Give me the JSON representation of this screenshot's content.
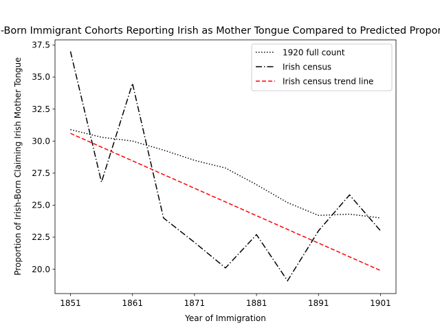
{
  "chart_data": {
    "type": "line",
    "title": "Irish-Born Immigrant Cohorts Reporting Irish as Mother Tongue Compared to Predicted Proportion",
    "xlabel": "Year of Immigration",
    "ylabel": "Proportion of Irish-Born Claiming Irish Mother Tongue",
    "xlim": [
      1848.5,
      1903.5
    ],
    "ylim": [
      18.1,
      37.9
    ],
    "xticks": [
      1851,
      1861,
      1871,
      1881,
      1891,
      1901
    ],
    "yticks": [
      20.0,
      22.5,
      25.0,
      27.5,
      30.0,
      32.5,
      35.0,
      37.5
    ],
    "ytick_labels": [
      "20.0",
      "22.5",
      "25.0",
      "27.5",
      "30.0",
      "32.5",
      "35.0",
      "37.5"
    ],
    "legend_position": "upper right",
    "series": [
      {
        "name": "1920 full count",
        "style": "dotted",
        "color": "#000000",
        "x": [
          1851,
          1856,
          1861,
          1866,
          1871,
          1876,
          1881,
          1886,
          1891,
          1896,
          1901
        ],
        "y": [
          30.9,
          30.3,
          30.0,
          29.3,
          28.5,
          27.9,
          26.6,
          25.2,
          24.2,
          24.3,
          24.0
        ]
      },
      {
        "name": "Irish census",
        "style": "dashdot",
        "color": "#000000",
        "x": [
          1851,
          1856,
          1861,
          1866,
          1871,
          1876,
          1881,
          1886,
          1891,
          1896,
          1901
        ],
        "y": [
          37.0,
          26.8,
          34.5,
          24.0,
          22.1,
          20.1,
          22.7,
          19.1,
          23.0,
          25.8,
          23.0
        ]
      },
      {
        "name": "Irish census trend line",
        "style": "dashed",
        "color": "#ff0000",
        "x": [
          1851,
          1901
        ],
        "y": [
          30.6,
          19.9
        ]
      }
    ]
  }
}
